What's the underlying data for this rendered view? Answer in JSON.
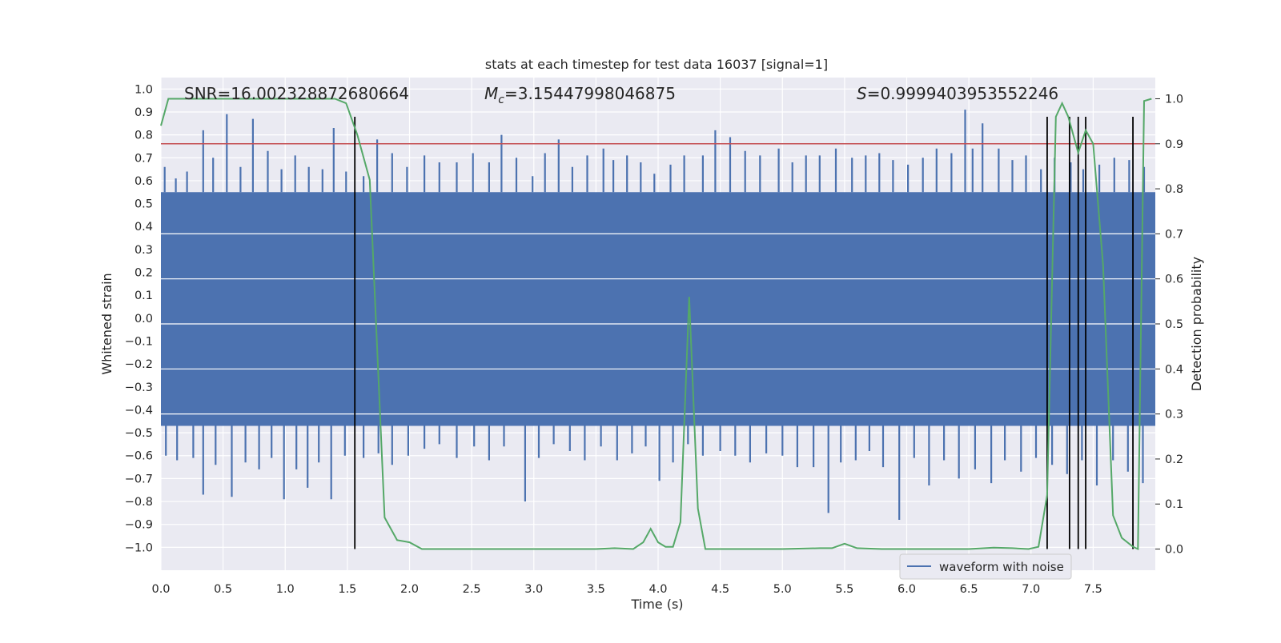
{
  "chart_data": {
    "type": "line",
    "title": "stats at each timestep for test data 16037 [signal=1]",
    "xlabel": "Time (s)",
    "ylabel": "Whitened strain",
    "y2label": "Detection probability",
    "xlim": [
      0.0,
      8.0
    ],
    "ylim": [
      -1.1,
      1.05
    ],
    "y2lim": [
      -0.047,
      1.047
    ],
    "xticks": [
      "0.0",
      "0.5",
      "1.0",
      "1.5",
      "2.0",
      "2.5",
      "3.0",
      "3.5",
      "4.0",
      "4.5",
      "5.0",
      "5.5",
      "6.0",
      "6.5",
      "7.0",
      "7.5"
    ],
    "yticks": [
      "1.0",
      "0.9",
      "0.8",
      "0.7",
      "0.6",
      "0.5",
      "0.4",
      "0.3",
      "0.2",
      "0.1",
      "0.0",
      "-0.1",
      "-0.2",
      "-0.3",
      "-0.4",
      "-0.5",
      "-0.6",
      "-0.7",
      "-0.8",
      "-0.9",
      "-1.0"
    ],
    "y2ticks": [
      "1.0",
      "0.9",
      "0.8",
      "0.7",
      "0.6",
      "0.5",
      "0.4",
      "0.3",
      "0.2",
      "0.1",
      "0.0"
    ],
    "grid": true,
    "legend_position": "lower-right",
    "annotations": {
      "snr": "SNR=16.002328872680664",
      "mc_symbol": "M",
      "mc_sub": "c",
      "mc_value": "=3.15447998046875",
      "s_symbol": "S",
      "s_value": "=0.9999403953552246"
    },
    "threshold": {
      "axis": "y2",
      "value": 0.9,
      "color": "#c44e52"
    },
    "waveform": {
      "name": "waveform with noise",
      "color": "#4c72b0",
      "band_upper": 0.55,
      "band_lower": -0.47,
      "peaks": [
        [
          0.03,
          0.66
        ],
        [
          0.12,
          0.61
        ],
        [
          0.21,
          0.64
        ],
        [
          0.34,
          0.82
        ],
        [
          0.42,
          0.7
        ],
        [
          0.53,
          0.89
        ],
        [
          0.64,
          0.66
        ],
        [
          0.74,
          0.87
        ],
        [
          0.86,
          0.73
        ],
        [
          0.97,
          0.65
        ],
        [
          1.08,
          0.71
        ],
        [
          1.19,
          0.66
        ],
        [
          1.3,
          0.65
        ],
        [
          1.39,
          0.83
        ],
        [
          1.49,
          0.64
        ],
        [
          1.63,
          0.62
        ],
        [
          1.74,
          0.78
        ],
        [
          1.86,
          0.72
        ],
        [
          1.98,
          0.66
        ],
        [
          2.12,
          0.71
        ],
        [
          2.24,
          0.68
        ],
        [
          2.38,
          0.68
        ],
        [
          2.51,
          0.72
        ],
        [
          2.64,
          0.68
        ],
        [
          2.74,
          0.8
        ],
        [
          2.86,
          0.7
        ],
        [
          2.99,
          0.62
        ],
        [
          3.09,
          0.72
        ],
        [
          3.2,
          0.78
        ],
        [
          3.31,
          0.66
        ],
        [
          3.43,
          0.71
        ],
        [
          3.56,
          0.74
        ],
        [
          3.64,
          0.69
        ],
        [
          3.75,
          0.71
        ],
        [
          3.86,
          0.68
        ],
        [
          3.97,
          0.63
        ],
        [
          4.1,
          0.67
        ],
        [
          4.21,
          0.71
        ],
        [
          4.36,
          0.71
        ],
        [
          4.46,
          0.82
        ],
        [
          4.58,
          0.79
        ],
        [
          4.7,
          0.73
        ],
        [
          4.82,
          0.71
        ],
        [
          4.97,
          0.74
        ],
        [
          5.08,
          0.68
        ],
        [
          5.19,
          0.71
        ],
        [
          5.3,
          0.71
        ],
        [
          5.43,
          0.74
        ],
        [
          5.56,
          0.7
        ],
        [
          5.67,
          0.71
        ],
        [
          5.78,
          0.72
        ],
        [
          5.89,
          0.69
        ],
        [
          6.01,
          0.67
        ],
        [
          6.13,
          0.7
        ],
        [
          6.24,
          0.74
        ],
        [
          6.36,
          0.72
        ],
        [
          6.47,
          0.91
        ],
        [
          6.53,
          0.74
        ],
        [
          6.61,
          0.85
        ],
        [
          6.74,
          0.74
        ],
        [
          6.85,
          0.69
        ],
        [
          6.96,
          0.71
        ],
        [
          7.08,
          0.65
        ],
        [
          7.19,
          0.7
        ],
        [
          7.32,
          0.68
        ],
        [
          7.42,
          0.65
        ],
        [
          7.55,
          0.67
        ],
        [
          7.67,
          0.7
        ],
        [
          7.79,
          0.69
        ],
        [
          7.91,
          0.66
        ]
      ],
      "troughs": [
        [
          0.04,
          -0.6
        ],
        [
          0.13,
          -0.62
        ],
        [
          0.26,
          -0.61
        ],
        [
          0.34,
          -0.77
        ],
        [
          0.44,
          -0.64
        ],
        [
          0.57,
          -0.78
        ],
        [
          0.68,
          -0.63
        ],
        [
          0.79,
          -0.66
        ],
        [
          0.89,
          -0.61
        ],
        [
          0.99,
          -0.79
        ],
        [
          1.09,
          -0.66
        ],
        [
          1.18,
          -0.74
        ],
        [
          1.27,
          -0.63
        ],
        [
          1.37,
          -0.79
        ],
        [
          1.48,
          -0.6
        ],
        [
          1.63,
          -0.61
        ],
        [
          1.75,
          -0.59
        ],
        [
          1.86,
          -0.64
        ],
        [
          1.99,
          -0.6
        ],
        [
          2.12,
          -0.57
        ],
        [
          2.24,
          -0.55
        ],
        [
          2.38,
          -0.61
        ],
        [
          2.52,
          -0.56
        ],
        [
          2.64,
          -0.62
        ],
        [
          2.76,
          -0.56
        ],
        [
          2.93,
          -0.8
        ],
        [
          3.04,
          -0.61
        ],
        [
          3.16,
          -0.55
        ],
        [
          3.29,
          -0.58
        ],
        [
          3.41,
          -0.62
        ],
        [
          3.54,
          -0.56
        ],
        [
          3.67,
          -0.62
        ],
        [
          3.79,
          -0.59
        ],
        [
          3.9,
          -0.56
        ],
        [
          4.01,
          -0.71
        ],
        [
          4.12,
          -0.63
        ],
        [
          4.24,
          -0.55
        ],
        [
          4.36,
          -0.6
        ],
        [
          4.5,
          -0.58
        ],
        [
          4.62,
          -0.6
        ],
        [
          4.74,
          -0.63
        ],
        [
          4.87,
          -0.59
        ],
        [
          5.0,
          -0.6
        ],
        [
          5.12,
          -0.65
        ],
        [
          5.25,
          -0.65
        ],
        [
          5.37,
          -0.85
        ],
        [
          5.47,
          -0.63
        ],
        [
          5.59,
          -0.62
        ],
        [
          5.7,
          -0.58
        ],
        [
          5.81,
          -0.65
        ],
        [
          5.94,
          -0.88
        ],
        [
          6.06,
          -0.61
        ],
        [
          6.18,
          -0.73
        ],
        [
          6.3,
          -0.62
        ],
        [
          6.42,
          -0.7
        ],
        [
          6.55,
          -0.66
        ],
        [
          6.68,
          -0.72
        ],
        [
          6.79,
          -0.62
        ],
        [
          6.92,
          -0.67
        ],
        [
          7.04,
          -0.61
        ],
        [
          7.17,
          -0.64
        ],
        [
          7.29,
          -0.68
        ],
        [
          7.41,
          -0.62
        ],
        [
          7.53,
          -0.73
        ],
        [
          7.66,
          -0.62
        ],
        [
          7.78,
          -0.67
        ],
        [
          7.9,
          -0.72
        ]
      ]
    },
    "detection": {
      "color": "#55a868",
      "x": [
        0.0,
        0.06,
        0.5,
        1.0,
        1.4,
        1.49,
        1.58,
        1.68,
        1.8,
        1.9,
        2.0,
        2.1,
        2.5,
        3.0,
        3.5,
        3.65,
        3.8,
        3.88,
        3.94,
        4.0,
        4.06,
        4.12,
        4.18,
        4.25,
        4.32,
        4.38,
        4.6,
        5.0,
        5.3,
        5.4,
        5.5,
        5.6,
        5.8,
        6.0,
        6.5,
        6.7,
        6.85,
        6.98,
        7.06,
        7.13,
        7.2,
        7.25,
        7.3,
        7.38,
        7.44,
        7.5,
        7.58,
        7.66,
        7.73,
        7.82,
        7.86,
        7.91,
        7.97
      ],
      "y": [
        0.94,
        1.0,
        1.0,
        1.0,
        1.0,
        0.99,
        0.92,
        0.82,
        0.07,
        0.02,
        0.015,
        0.0,
        0.0,
        0.0,
        0.0,
        0.002,
        0.0,
        0.015,
        0.045,
        0.015,
        0.005,
        0.005,
        0.06,
        0.56,
        0.09,
        0.0,
        0.0,
        0.0,
        0.002,
        0.002,
        0.012,
        0.002,
        0.0,
        0.0,
        0.0,
        0.003,
        0.002,
        0.0,
        0.005,
        0.12,
        0.96,
        0.99,
        0.96,
        0.88,
        0.93,
        0.9,
        0.63,
        0.075,
        0.025,
        0.005,
        0.0,
        0.995,
        1.0
      ]
    },
    "vlines": {
      "x": [
        1.56,
        7.13,
        7.31,
        7.38,
        7.44,
        7.82
      ],
      "ymin": -1.0,
      "ymax": 0.96,
      "color": "#000000"
    }
  }
}
